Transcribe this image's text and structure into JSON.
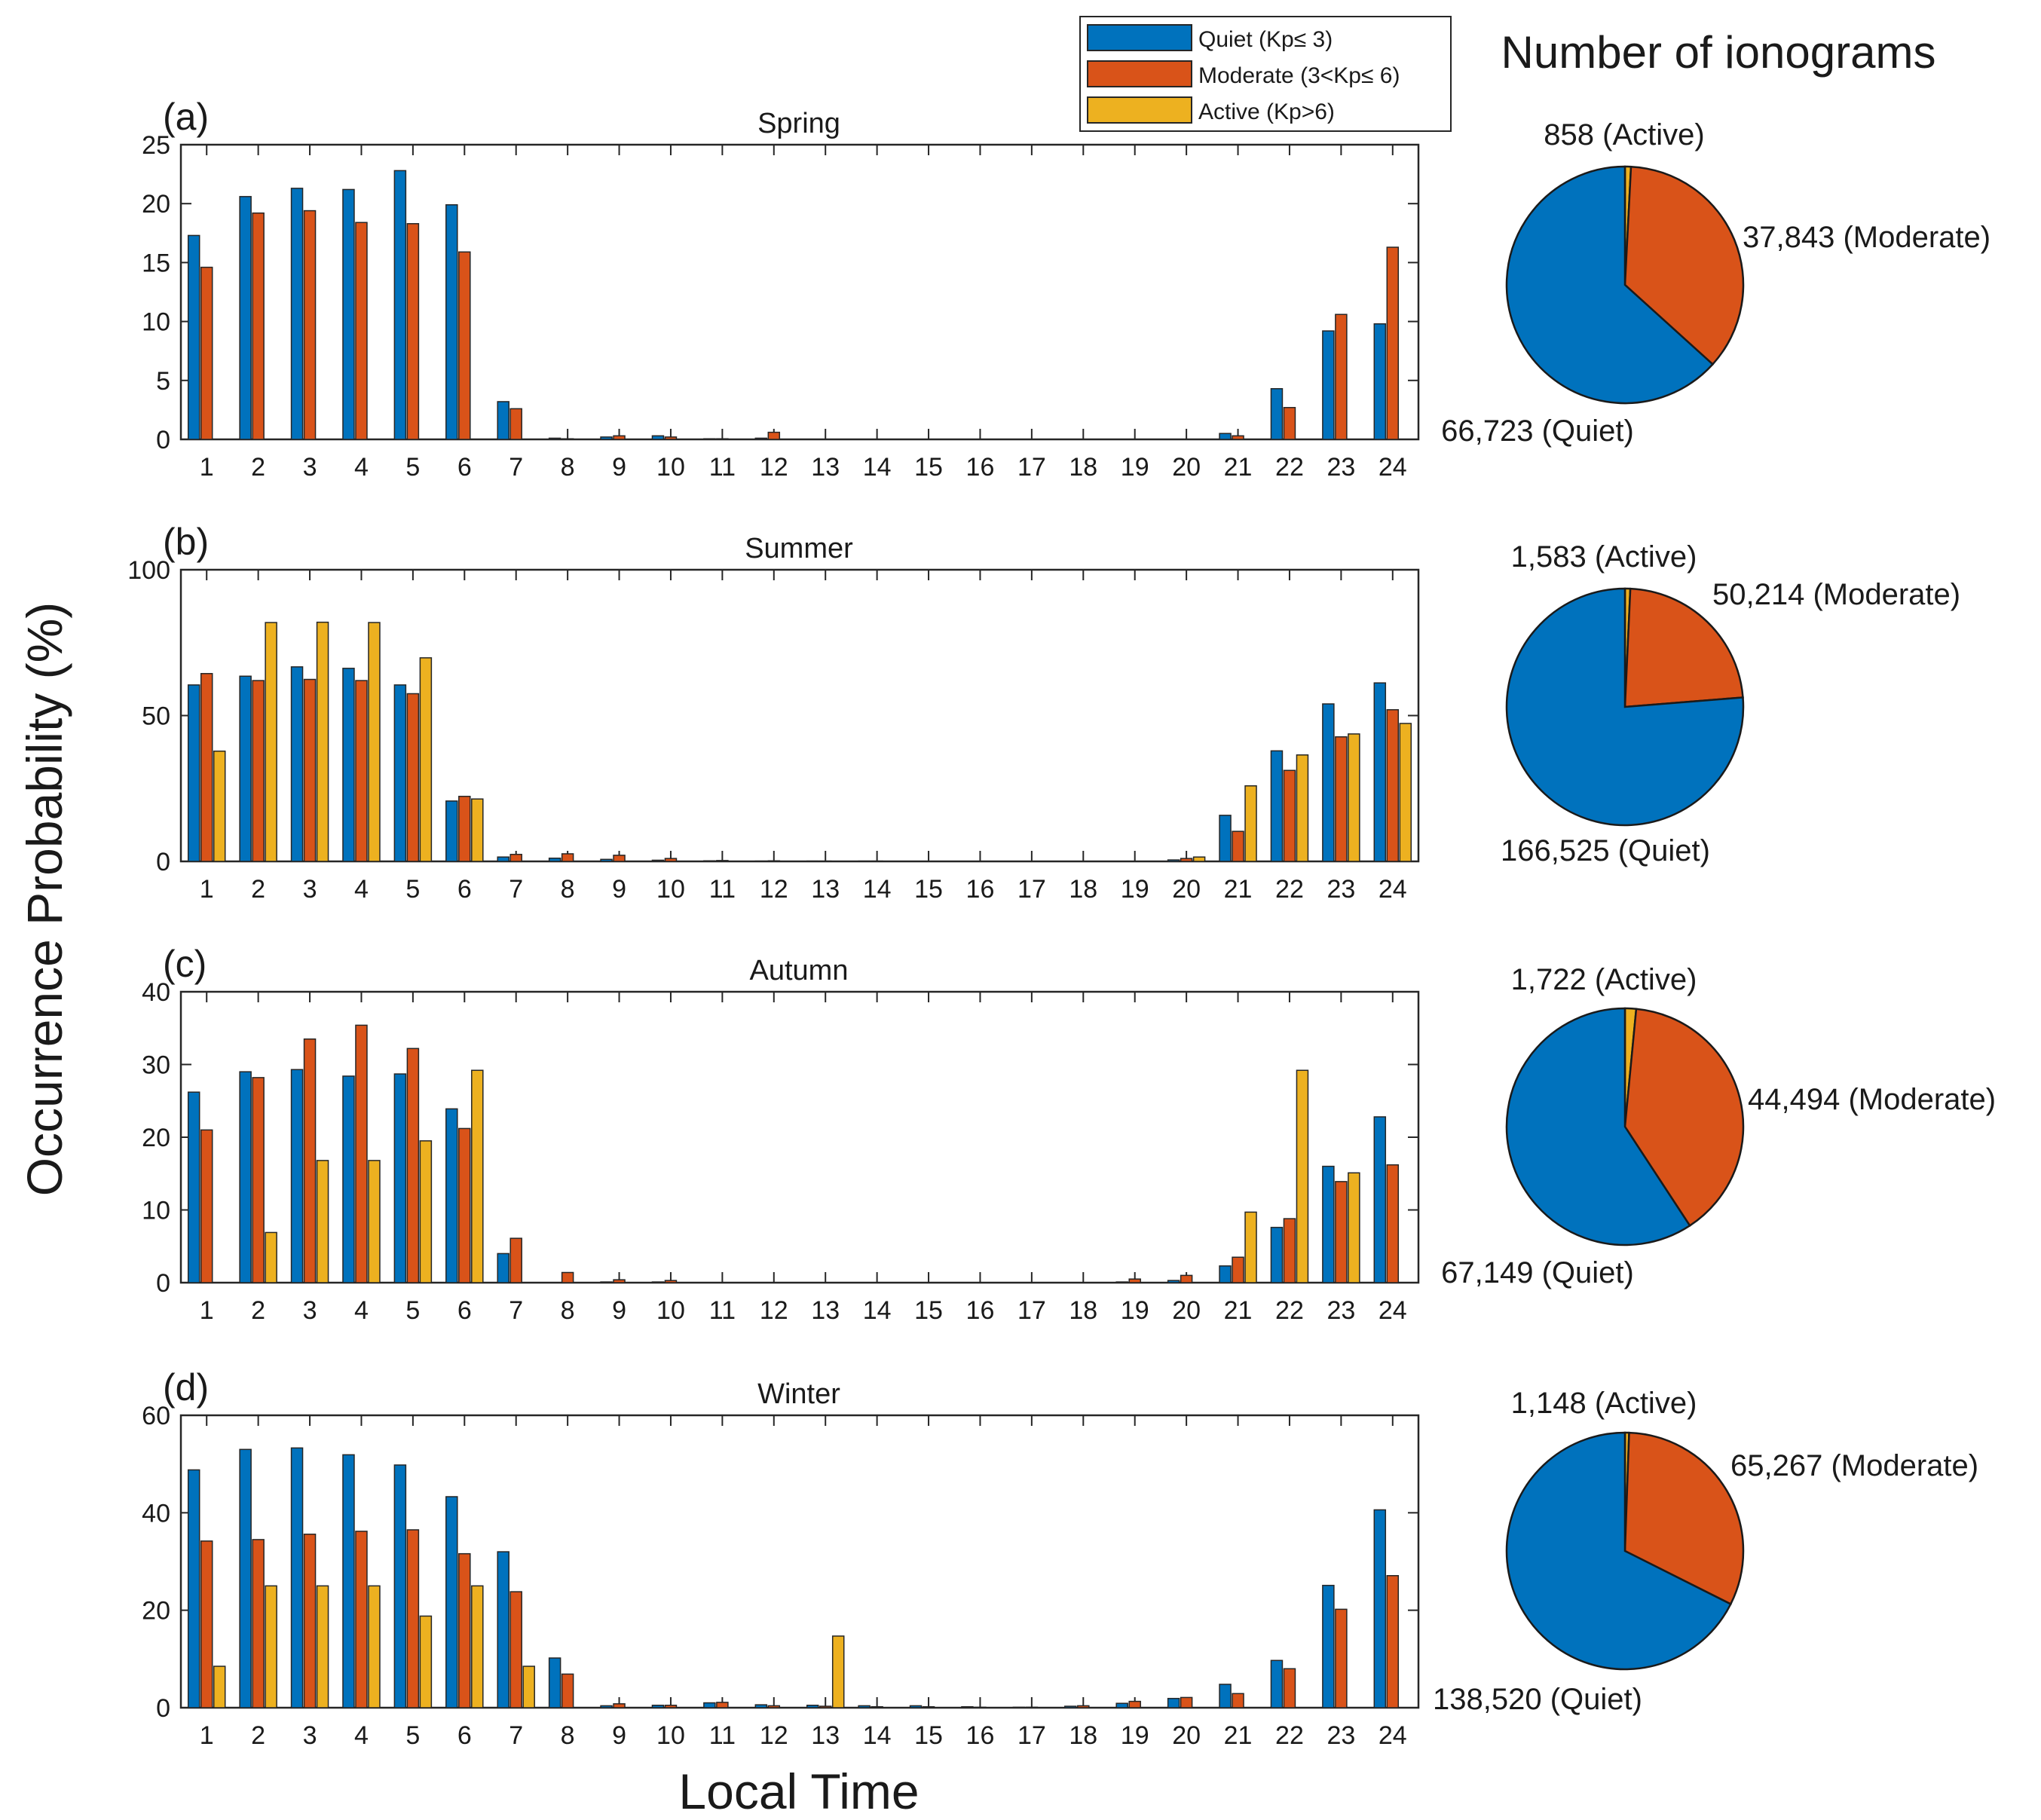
{
  "figure": {
    "ylabel": "Occurrence Probability (%)",
    "xlabel": "Local Time",
    "pie_header": "Number of ionograms"
  },
  "legend": [
    {
      "label": "Quiet (Kp≤ 3)",
      "color": "#0072BD"
    },
    {
      "label": "Moderate (3<Kp≤ 6)",
      "color": "#D95319"
    },
    {
      "label": "Active (Kp>6)",
      "color": "#EDB120"
    }
  ],
  "chart_data": [
    {
      "type": "bar",
      "panel": "(a)",
      "title": "Spring",
      "categories": [
        "1",
        "2",
        "3",
        "4",
        "5",
        "6",
        "7",
        "8",
        "9",
        "10",
        "11",
        "12",
        "13",
        "14",
        "15",
        "16",
        "17",
        "18",
        "19",
        "20",
        "21",
        "22",
        "23",
        "24"
      ],
      "ylim": [
        0,
        25
      ],
      "yticks": [
        0,
        5,
        10,
        15,
        20,
        25
      ],
      "series": [
        {
          "name": "Quiet",
          "values": [
            17.3,
            20.6,
            21.3,
            21.2,
            22.8,
            19.9,
            3.2,
            0.1,
            0.2,
            0.3,
            0.05,
            0.1,
            0,
            0,
            0,
            0,
            0,
            0,
            0,
            0,
            0.5,
            4.3,
            9.2,
            9.8
          ]
        },
        {
          "name": "Moderate",
          "values": [
            14.6,
            19.2,
            19.4,
            18.4,
            18.3,
            15.9,
            2.6,
            0.05,
            0.3,
            0.2,
            0.05,
            0.6,
            0,
            0,
            0,
            0,
            0,
            0,
            0,
            0,
            0.3,
            2.7,
            10.6,
            16.3
          ]
        },
        {
          "name": "Active",
          "values": [
            0,
            0,
            0,
            0,
            0,
            0,
            0,
            0,
            0,
            0,
            0,
            0,
            0,
            0,
            0,
            0,
            0,
            0,
            0,
            0,
            0,
            0,
            0,
            0
          ]
        }
      ],
      "pie": [
        {
          "name": "Quiet",
          "value": 66723,
          "label": "66,723 (Quiet)"
        },
        {
          "name": "Moderate",
          "value": 37843,
          "label": "37,843 (Moderate)"
        },
        {
          "name": "Active",
          "value": 858,
          "label": "858 (Active)"
        }
      ]
    },
    {
      "type": "bar",
      "panel": "(b)",
      "title": "Summer",
      "categories": [
        "1",
        "2",
        "3",
        "4",
        "5",
        "6",
        "7",
        "8",
        "9",
        "10",
        "11",
        "12",
        "13",
        "14",
        "15",
        "16",
        "17",
        "18",
        "19",
        "20",
        "21",
        "22",
        "23",
        "24"
      ],
      "ylim": [
        0,
        100
      ],
      "yticks": [
        0,
        50,
        100
      ],
      "series": [
        {
          "name": "Quiet",
          "values": [
            60.5,
            63.5,
            66.7,
            66.2,
            60.5,
            20.7,
            1.5,
            1.1,
            0.7,
            0.4,
            0.2,
            0.1,
            0.1,
            0.1,
            0.05,
            0,
            0,
            0,
            0,
            0.5,
            15.8,
            37.9,
            54.0,
            61.2
          ]
        },
        {
          "name": "Moderate",
          "values": [
            64.4,
            62.0,
            62.4,
            62.0,
            57.5,
            22.3,
            2.4,
            2.6,
            2.1,
            1.0,
            0.3,
            0.2,
            0.1,
            0.1,
            0.05,
            0,
            0,
            0,
            0,
            1.0,
            10.3,
            31.2,
            42.7,
            52.0
          ]
        },
        {
          "name": "Active",
          "values": [
            37.8,
            81.9,
            82.0,
            81.9,
            69.8,
            21.4,
            0,
            0,
            0,
            0,
            0,
            0,
            0,
            0,
            0,
            0,
            0,
            0,
            0,
            1.5,
            25.9,
            36.5,
            43.7,
            47.3
          ]
        }
      ],
      "pie": [
        {
          "name": "Quiet",
          "value": 166525,
          "label": "166,525 (Quiet)"
        },
        {
          "name": "Moderate",
          "value": 50214,
          "label": "50,214 (Moderate)"
        },
        {
          "name": "Active",
          "value": 1583,
          "label": "1,583 (Active)"
        }
      ]
    },
    {
      "type": "bar",
      "panel": "(c)",
      "title": "Autumn",
      "categories": [
        "1",
        "2",
        "3",
        "4",
        "5",
        "6",
        "7",
        "8",
        "9",
        "10",
        "11",
        "12",
        "13",
        "14",
        "15",
        "16",
        "17",
        "18",
        "19",
        "20",
        "21",
        "22",
        "23",
        "24"
      ],
      "ylim": [
        0,
        40
      ],
      "yticks": [
        0,
        10,
        20,
        30,
        40
      ],
      "series": [
        {
          "name": "Quiet",
          "values": [
            26.2,
            29.0,
            29.3,
            28.4,
            28.7,
            23.9,
            4.0,
            0,
            0.1,
            0.1,
            0,
            0,
            0,
            0,
            0,
            0,
            0,
            0,
            0.1,
            0.3,
            2.3,
            7.6,
            16.0,
            22.8
          ]
        },
        {
          "name": "Moderate",
          "values": [
            21.0,
            28.2,
            33.5,
            35.4,
            32.2,
            21.2,
            6.1,
            1.4,
            0.4,
            0.3,
            0,
            0,
            0,
            0,
            0,
            0,
            0,
            0,
            0.5,
            1.0,
            3.5,
            8.8,
            13.9,
            16.2
          ]
        },
        {
          "name": "Active",
          "values": [
            0,
            6.9,
            16.8,
            16.8,
            19.5,
            29.2,
            0,
            0,
            0,
            0,
            0,
            0,
            0,
            0,
            0,
            0,
            0,
            0,
            0,
            0,
            9.7,
            29.2,
            15.1,
            0
          ]
        }
      ],
      "pie": [
        {
          "name": "Quiet",
          "value": 67149,
          "label": "67,149 (Quiet)"
        },
        {
          "name": "Moderate",
          "value": 44494,
          "label": "44,494 (Moderate)"
        },
        {
          "name": "Active",
          "value": 1722,
          "label": "1,722 (Active)"
        }
      ]
    },
    {
      "type": "bar",
      "panel": "(d)",
      "title": "Winter",
      "categories": [
        "1",
        "2",
        "3",
        "4",
        "5",
        "6",
        "7",
        "8",
        "9",
        "10",
        "11",
        "12",
        "13",
        "14",
        "15",
        "16",
        "17",
        "18",
        "19",
        "20",
        "21",
        "22",
        "23",
        "24"
      ],
      "ylim": [
        0,
        60
      ],
      "yticks": [
        0,
        20,
        40,
        60
      ],
      "series": [
        {
          "name": "Quiet",
          "values": [
            48.8,
            53.0,
            53.3,
            51.9,
            49.8,
            43.3,
            32.0,
            10.2,
            0.4,
            0.5,
            1.0,
            0.6,
            0.5,
            0.4,
            0.4,
            0.2,
            0.1,
            0.3,
            0.9,
            1.9,
            4.8,
            9.7,
            25.1,
            40.6
          ]
        },
        {
          "name": "Moderate",
          "values": [
            34.2,
            34.5,
            35.6,
            36.2,
            36.5,
            31.6,
            23.8,
            6.9,
            0.8,
            0.5,
            1.1,
            0.4,
            0.3,
            0.2,
            0.2,
            0.1,
            0.1,
            0.4,
            1.3,
            2.1,
            2.9,
            8.0,
            20.2,
            27.1
          ]
        },
        {
          "name": "Active",
          "values": [
            8.5,
            25.0,
            25.0,
            25.0,
            18.8,
            25.0,
            8.5,
            0,
            0,
            0,
            0,
            0,
            14.7,
            0,
            0,
            0,
            0,
            0,
            0,
            0,
            0,
            0,
            0,
            0
          ]
        }
      ],
      "pie": [
        {
          "name": "Quiet",
          "value": 138520,
          "label": "138,520 (Quiet)"
        },
        {
          "name": "Moderate",
          "value": 65267,
          "label": "65,267 (Moderate)"
        },
        {
          "name": "Active",
          "value": 1148,
          "label": "1,148 (Active)"
        }
      ]
    }
  ]
}
